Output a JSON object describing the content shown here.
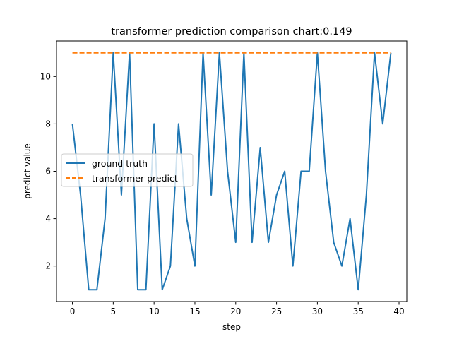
{
  "chart_data": {
    "type": "line",
    "title": "transformer prediction comparison chart:0.149",
    "xlabel": "step",
    "ylabel": "predict value",
    "xlim": [
      -1.95,
      40.95
    ],
    "ylim": [
      0.5,
      11.5
    ],
    "xticks": [
      0,
      5,
      10,
      15,
      20,
      25,
      30,
      35,
      40
    ],
    "yticks": [
      2,
      4,
      6,
      8,
      10
    ],
    "grid": false,
    "legend": "center-left",
    "series": [
      {
        "name": "ground truth",
        "color": "#1f77b4",
        "style": "solid",
        "x": [
          0,
          1,
          2,
          3,
          4,
          5,
          6,
          7,
          8,
          9,
          10,
          11,
          12,
          13,
          14,
          15,
          16,
          17,
          18,
          19,
          20,
          21,
          22,
          23,
          24,
          25,
          26,
          27,
          28,
          29,
          30,
          31,
          32,
          33,
          34,
          35,
          36,
          37,
          38,
          39
        ],
        "values": [
          8,
          5,
          1,
          1,
          4,
          11,
          5,
          11,
          1,
          1,
          8,
          1,
          2,
          8,
          4,
          2,
          11,
          5,
          11,
          6,
          3,
          11,
          3,
          7,
          3,
          5,
          6,
          2,
          6,
          6,
          11,
          6,
          3,
          2,
          4,
          1,
          5,
          11,
          8,
          11
        ]
      },
      {
        "name": "transformer predict",
        "color": "#ff7f0e",
        "style": "dashed",
        "x": [
          0,
          39
        ],
        "values": [
          11,
          11
        ]
      }
    ]
  }
}
